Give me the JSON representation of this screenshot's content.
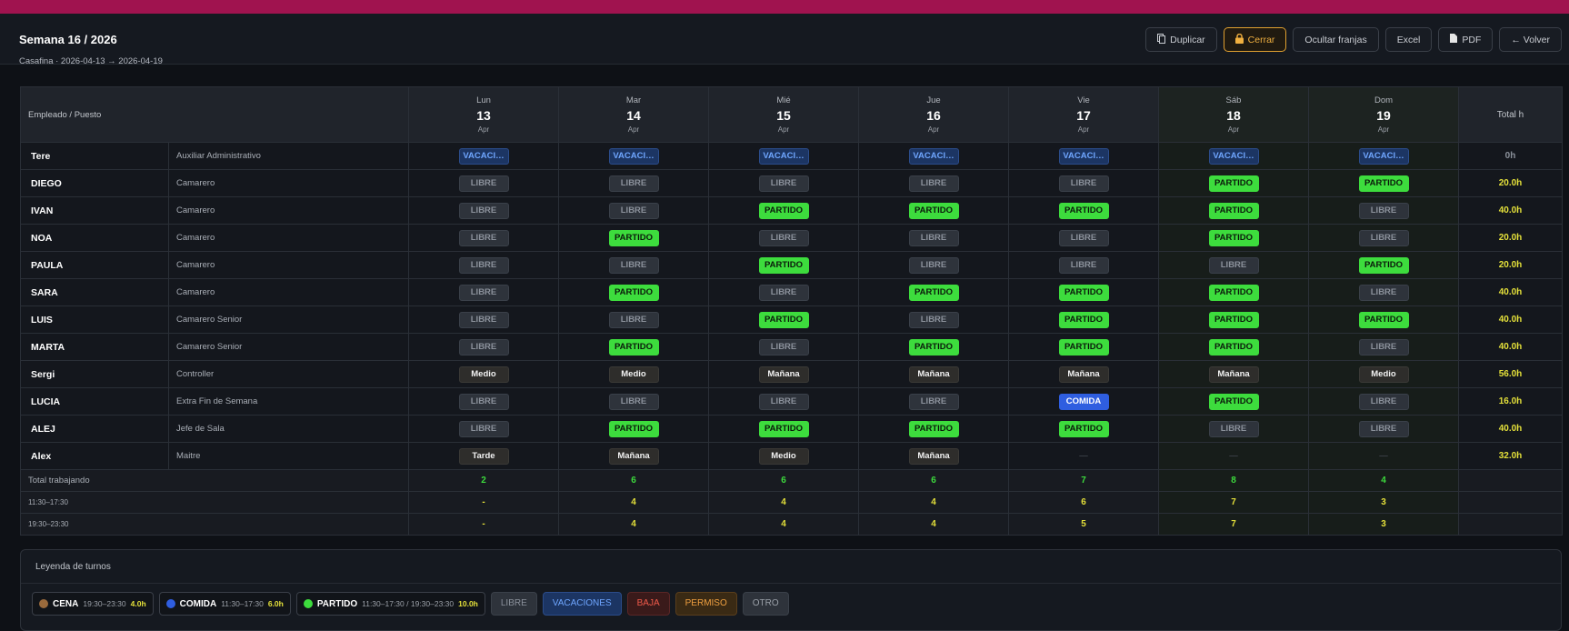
{
  "header": {
    "title": "Semana 16 / 2026",
    "subtitle": "Casafina · 2026-04-13 → 2026-04-19",
    "buttons": [
      "Duplicar",
      "Cerrar",
      "Ocultar franjas",
      "Excel",
      "PDF",
      "← Volver"
    ]
  },
  "table": {
    "head_label": "Empleado / Puesto",
    "total_label": "Total h",
    "days": [
      {
        "dow": "Lun",
        "day": 13,
        "month": "Apr"
      },
      {
        "dow": "Mar",
        "day": 14,
        "month": "Apr"
      },
      {
        "dow": "Mié",
        "day": 15,
        "month": "Apr"
      },
      {
        "dow": "Jue",
        "day": 16,
        "month": "Apr"
      },
      {
        "dow": "Vie",
        "day": 17,
        "month": "Apr"
      },
      {
        "dow": "Sáb",
        "day": 18,
        "month": "Apr"
      },
      {
        "dow": "Dom",
        "day": 19,
        "month": "Apr"
      }
    ],
    "rows": [
      {
        "name": "Tere",
        "role": "Auxiliar Administrativo",
        "shifts": [
          "VACACI…",
          "VACACI…",
          "VACACI…",
          "VACACI…",
          "VACACI…",
          "VACACI…",
          "VACACI…"
        ],
        "total": "0h"
      },
      {
        "name": "DIEGO",
        "role": "Camarero",
        "shifts": [
          "LIBRE",
          "LIBRE",
          "LIBRE",
          "LIBRE",
          "LIBRE",
          "PARTIDO",
          "PARTIDO"
        ],
        "total": "20.0h"
      },
      {
        "name": "IVAN",
        "role": "Camarero",
        "shifts": [
          "LIBRE",
          "LIBRE",
          "PARTIDO",
          "PARTIDO",
          "PARTIDO",
          "PARTIDO",
          "LIBRE"
        ],
        "total": "40.0h"
      },
      {
        "name": "NOA",
        "role": "Camarero",
        "shifts": [
          "LIBRE",
          "PARTIDO",
          "LIBRE",
          "LIBRE",
          "LIBRE",
          "PARTIDO",
          "LIBRE"
        ],
        "total": "20.0h"
      },
      {
        "name": "PAULA",
        "role": "Camarero",
        "shifts": [
          "LIBRE",
          "LIBRE",
          "PARTIDO",
          "LIBRE",
          "LIBRE",
          "LIBRE",
          "PARTIDO"
        ],
        "total": "20.0h"
      },
      {
        "name": "SARA",
        "role": "Camarero",
        "shifts": [
          "LIBRE",
          "PARTIDO",
          "LIBRE",
          "PARTIDO",
          "PARTIDO",
          "PARTIDO",
          "LIBRE"
        ],
        "total": "40.0h"
      },
      {
        "name": "LUIS",
        "role": "Camarero Senior",
        "shifts": [
          "LIBRE",
          "LIBRE",
          "PARTIDO",
          "LIBRE",
          "PARTIDO",
          "PARTIDO",
          "PARTIDO"
        ],
        "total": "40.0h"
      },
      {
        "name": "MARTA",
        "role": "Camarero Senior",
        "shifts": [
          "LIBRE",
          "PARTIDO",
          "LIBRE",
          "PARTIDO",
          "PARTIDO",
          "PARTIDO",
          "LIBRE"
        ],
        "total": "40.0h"
      },
      {
        "name": "Sergi",
        "role": "Controller",
        "shifts": [
          "Medio",
          "Medio",
          "Mañana",
          "Mañana",
          "Mañana",
          "Mañana",
          "Medio"
        ],
        "total": "56.0h"
      },
      {
        "name": "LUCIA",
        "role": "Extra Fin de Semana",
        "shifts": [
          "LIBRE",
          "LIBRE",
          "LIBRE",
          "LIBRE",
          "COMIDA",
          "PARTIDO",
          "LIBRE"
        ],
        "total": "16.0h"
      },
      {
        "name": "ALEJ",
        "role": "Jefe de Sala",
        "shifts": [
          "LIBRE",
          "PARTIDO",
          "PARTIDO",
          "PARTIDO",
          "PARTIDO",
          "LIBRE",
          "LIBRE"
        ],
        "total": "40.0h"
      },
      {
        "name": "Alex",
        "role": "Maitre",
        "shifts": [
          "Tarde",
          "Mañana",
          "Medio",
          "Mañana",
          "—",
          "—",
          "—"
        ],
        "total": "32.0h"
      }
    ],
    "summary": [
      {
        "label": "Total trabajando",
        "values": [
          2,
          6,
          6,
          6,
          7,
          8,
          4
        ]
      },
      {
        "label": "11:30–17:30",
        "values": [
          "-",
          4,
          4,
          4,
          6,
          7,
          3
        ]
      },
      {
        "label": "19:30–23:30",
        "values": [
          "-",
          4,
          4,
          4,
          5,
          7,
          3
        ]
      }
    ],
    "chip_colors": {
      "VACACI…": [
        "#1c3563",
        "#6fa6ff",
        "#2b4c8a"
      ],
      "LIBRE": [
        "#2e333b",
        "#8b919b",
        "#3a4049"
      ],
      "PARTIDO": [
        "#3ddc3d",
        "#0b1a0b",
        "#3ddc3d"
      ],
      "COMIDA": [
        "#2f5ee0",
        "#ffffff",
        "#2f5ee0"
      ],
      "Medio": [
        "#2e2d2b",
        "#f1f1f1",
        "#3a3936"
      ],
      "Mañana": [
        "#2e2d2b",
        "#f1f1f1",
        "#3a3936"
      ],
      "Tarde": [
        "#2e2d2b",
        "#f1f1f1",
        "#3a3936"
      ],
      "—": [
        "transparent",
        "#3b4048",
        "transparent"
      ]
    }
  },
  "legend": {
    "title": "Leyenda de turnos",
    "shifts": [
      {
        "name": "CENA",
        "hours": "19:30–23:30",
        "total": "4.0h",
        "color": "#9a6a3c"
      },
      {
        "name": "COMIDA",
        "hours": "11:30–17:30",
        "total": "6.0h",
        "color": "#2f5ee0"
      },
      {
        "name": "PARTIDO",
        "hours": "11:30–17:30 / 19:30–23:30",
        "total": "10.0h",
        "color": "#3ddc3d"
      }
    ],
    "tags": [
      {
        "name": "LIBRE",
        "colors": [
          "#2e333b",
          "#8b919b",
          "#3a4049"
        ]
      },
      {
        "name": "VACACIONES",
        "colors": [
          "#1c3563",
          "#6fa6ff",
          "#2b4c8a"
        ]
      },
      {
        "name": "BAJA",
        "colors": [
          "#3a1a1a",
          "#f05a4a",
          "#5a2626"
        ]
      },
      {
        "name": "PERMISO",
        "colors": [
          "#3a2a14",
          "#f0a040",
          "#5a3e1c"
        ]
      },
      {
        "name": "OTRO",
        "colors": [
          "#2e333b",
          "#9aa0a8",
          "#3a4049"
        ]
      }
    ]
  }
}
